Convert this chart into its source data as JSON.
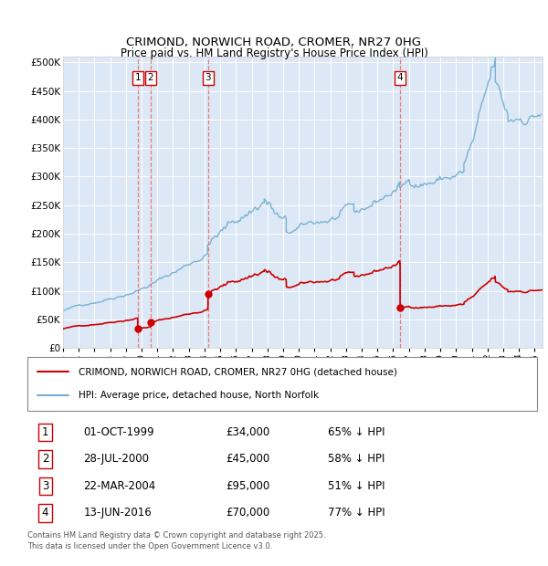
{
  "title": "CRIMOND, NORWICH ROAD, CROMER, NR27 0HG",
  "subtitle": "Price paid vs. HM Land Registry's House Price Index (HPI)",
  "legend_line1": "CRIMOND, NORWICH ROAD, CROMER, NR27 0HG (detached house)",
  "legend_line2": "HPI: Average price, detached house, North Norfolk",
  "footnote": "Contains HM Land Registry data © Crown copyright and database right 2025.\nThis data is licensed under the Open Government Licence v3.0.",
  "sale_color": "#cc0000",
  "hpi_color": "#74afd3",
  "background_color": "#dce8f5",
  "ylim": [
    0,
    510000
  ],
  "yticks": [
    0,
    50000,
    100000,
    150000,
    200000,
    250000,
    300000,
    350000,
    400000,
    450000,
    500000
  ],
  "ytick_labels": [
    "£0",
    "£50K",
    "£100K",
    "£150K",
    "£200K",
    "£250K",
    "£300K",
    "£350K",
    "£400K",
    "£450K",
    "£500K"
  ],
  "sales": [
    {
      "date": 1999.75,
      "price": 34000,
      "label": "1"
    },
    {
      "date": 2000.57,
      "price": 45000,
      "label": "2"
    },
    {
      "date": 2004.22,
      "price": 95000,
      "label": "3"
    },
    {
      "date": 2016.44,
      "price": 70000,
      "label": "4"
    }
  ],
  "table_rows": [
    {
      "num": "1",
      "date": "01-OCT-1999",
      "price": "£34,000",
      "hpi": "65% ↓ HPI"
    },
    {
      "num": "2",
      "date": "28-JUL-2000",
      "price": "£45,000",
      "hpi": "58% ↓ HPI"
    },
    {
      "num": "3",
      "date": "22-MAR-2004",
      "price": "£95,000",
      "hpi": "51% ↓ HPI"
    },
    {
      "num": "4",
      "date": "13-JUN-2016",
      "price": "£70,000",
      "hpi": "77% ↓ HPI"
    }
  ],
  "vline_color": "#e87070",
  "xmin": 1995.0,
  "xmax": 2025.5
}
